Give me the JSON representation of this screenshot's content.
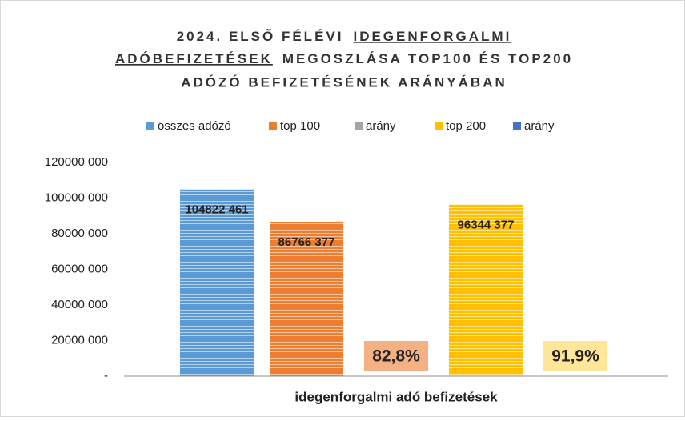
{
  "chart_data": {
    "type": "bar",
    "title": [
      "2024. ELSŐ FÉLÉVI",
      "IDEGENFORGALMI",
      "ADÓBEFIZETÉSEK",
      "MEGOSZLÁSA TOP100 ÉS TOP200",
      "ADÓZÓ BEFIZETÉSÉNEK ARÁNYÁBAN"
    ],
    "categories": [
      "idegenforgalmi adó befizetések"
    ],
    "series": [
      {
        "name": "összes adózó",
        "color": "#5b9bd5",
        "values": [
          104822461
        ],
        "value_labels": [
          "104822 461"
        ]
      },
      {
        "name": "top 100",
        "color": "#ed7d31",
        "values": [
          86766377
        ],
        "value_labels": [
          "86766 377"
        ]
      },
      {
        "name": "arány",
        "color": "#a5a5a5",
        "values": [
          82.8
        ],
        "value_labels": [
          "82,8%"
        ],
        "label_background": "#f4b183"
      },
      {
        "name": "top 200",
        "color": "#ffc000",
        "values": [
          96344377
        ],
        "value_labels": [
          "96344 377"
        ]
      },
      {
        "name": "arány",
        "color": "#4472c4",
        "values": [
          91.9
        ],
        "value_labels": [
          "91,9%"
        ],
        "label_background": "#ffe699"
      }
    ],
    "ylim": [
      0,
      120000000
    ],
    "yticks": [
      {
        "value": 0,
        "label": "-"
      },
      {
        "value": 20000000,
        "label": "20000 000"
      },
      {
        "value": 40000000,
        "label": "40000 000"
      },
      {
        "value": 60000000,
        "label": "60000 000"
      },
      {
        "value": 80000000,
        "label": "80000 000"
      },
      {
        "value": 100000000,
        "label": "100000 000"
      },
      {
        "value": 120000000,
        "label": "120000 000"
      }
    ],
    "legend": "top"
  }
}
